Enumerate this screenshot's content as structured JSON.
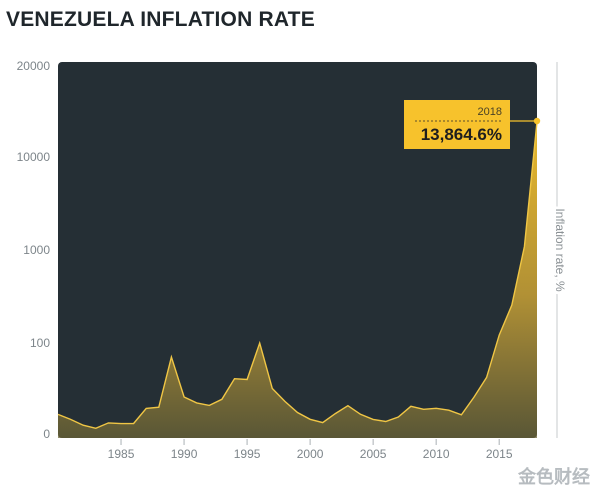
{
  "header": {
    "title": "VENEZUELA INFLATION RATE"
  },
  "watermark": {
    "text": "金色财经"
  },
  "colors": {
    "panel": "#252f35",
    "accent": "#f5bf2a",
    "line": "#f0c645",
    "label_bg": "#f7c22c"
  },
  "chart_data": {
    "type": "area",
    "title": "VENEZUELA INFLATION RATE",
    "xlabel": "",
    "ylabel": "Inflation rate, %",
    "y_scale": "piecewise-log",
    "ylim": [
      0,
      20000
    ],
    "y_ticks": [
      "20000",
      "10000",
      "1000",
      "100",
      "0"
    ],
    "x_ticks": [
      "1985",
      "1990",
      "1995",
      "2000",
      "2005",
      "2010",
      "2015"
    ],
    "grid": false,
    "x": [
      1980,
      1981,
      1982,
      1983,
      1984,
      1985,
      1986,
      1987,
      1988,
      1989,
      1990,
      1991,
      1992,
      1993,
      1994,
      1995,
      1996,
      1997,
      1998,
      1999,
      2000,
      2001,
      2002,
      2003,
      2004,
      2005,
      2006,
      2007,
      2008,
      2009,
      2010,
      2011,
      2012,
      2013,
      2014,
      2015,
      2016,
      2017,
      2018
    ],
    "values": [
      21.5,
      16,
      9.7,
      6.3,
      12.2,
      11.4,
      11.5,
      28.1,
      29.5,
      84.5,
      40.7,
      34.2,
      31.4,
      38.1,
      60.8,
      59.9,
      99.9,
      50,
      35.8,
      23.6,
      16.2,
      12.5,
      22.4,
      31.1,
      21.7,
      16,
      13.7,
      18.7,
      30.4,
      27.1,
      28.2,
      26.1,
      21.1,
      40.6,
      62.2,
      121.7,
      254.9,
      1087.5,
      13864.6
    ],
    "annotation": {
      "year_label": "2018",
      "value_label": "13,864.6%"
    }
  }
}
